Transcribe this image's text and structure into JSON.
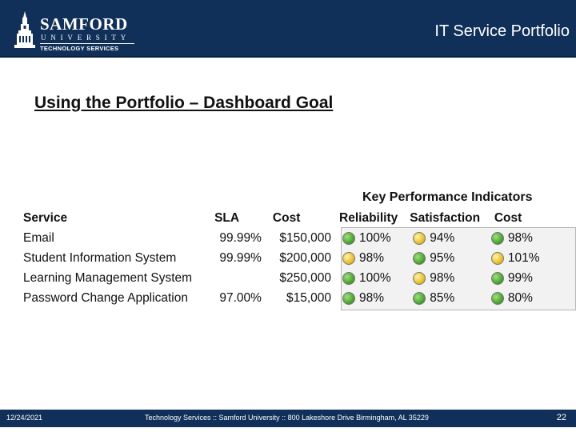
{
  "header": {
    "logo": {
      "name": "SAMFORD",
      "sub": "UNIVERSITY",
      "dept": "TECHNOLOGY SERVICES"
    },
    "title": "IT Service Portfolio"
  },
  "slide_title": "Using the Portfolio – Dashboard Goal",
  "kpi": {
    "heading": "Key Performance Indicators",
    "columns": [
      "Service",
      "SLA",
      "Cost",
      "Reliability",
      "Satisfaction",
      "Cost"
    ],
    "rows": [
      {
        "service": "Email",
        "sla": "99.99%",
        "cost": "$150,000",
        "reliability": {
          "status": "green",
          "value": "100%"
        },
        "satisfaction": {
          "status": "yellow",
          "value": "94%"
        },
        "kpi_cost": {
          "status": "green",
          "value": "98%"
        }
      },
      {
        "service": "Student Information System",
        "sla": "99.99%",
        "cost": "$200,000",
        "reliability": {
          "status": "yellow",
          "value": "98%"
        },
        "satisfaction": {
          "status": "green",
          "value": "95%"
        },
        "kpi_cost": {
          "status": "yellow",
          "value": "101%"
        }
      },
      {
        "service": "Learning Management System",
        "sla": "",
        "cost": "$250,000",
        "reliability": {
          "status": "green",
          "value": "100%"
        },
        "satisfaction": {
          "status": "yellow",
          "value": "98%"
        },
        "kpi_cost": {
          "status": "green",
          "value": "99%"
        }
      },
      {
        "service": "Password Change Application",
        "sla": "97.00%",
        "cost": "$15,000",
        "reliability": {
          "status": "green",
          "value": "98%"
        },
        "satisfaction": {
          "status": "green",
          "value": "85%"
        },
        "kpi_cost": {
          "status": "green",
          "value": "80%"
        }
      }
    ]
  },
  "footer": {
    "date": "12/24/2021",
    "text": "Technology Services :: Samford University :: 800 Lakeshore Drive Birmingham, AL 35229",
    "page": "22"
  },
  "colors": {
    "brand_navy": "#10305a",
    "status_green": "#3f9a2a",
    "status_yellow": "#e2b51c"
  }
}
